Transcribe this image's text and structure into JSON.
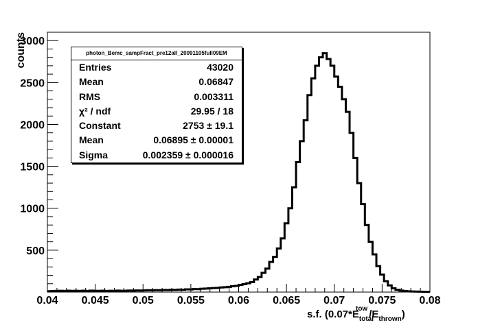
{
  "chart_data": {
    "type": "histogram",
    "title": "",
    "xlabel": "s.f. (0.07*E_total^tow/E_thrown)",
    "ylabel": "counts",
    "xlim": [
      0.04,
      0.08
    ],
    "ylim": [
      0,
      3100
    ],
    "x_ticks": [
      "0.04",
      "0.045",
      "0.05",
      "0.055",
      "0.06",
      "0.065",
      "0.07",
      "0.075",
      "0.08"
    ],
    "y_ticks": [
      "500",
      "1000",
      "1500",
      "2000",
      "2500",
      "3000"
    ],
    "bin_width": 0.0004,
    "x": [
      0.0402,
      0.0406,
      0.041,
      0.0414,
      0.0418,
      0.0422,
      0.0426,
      0.043,
      0.0434,
      0.0438,
      0.0442,
      0.0446,
      0.045,
      0.0454,
      0.0458,
      0.0462,
      0.0466,
      0.047,
      0.0474,
      0.0478,
      0.0482,
      0.0486,
      0.049,
      0.0494,
      0.0498,
      0.0502,
      0.0506,
      0.051,
      0.0514,
      0.0518,
      0.0522,
      0.0526,
      0.053,
      0.0534,
      0.0538,
      0.0542,
      0.0546,
      0.055,
      0.0554,
      0.0558,
      0.0562,
      0.0566,
      0.057,
      0.0574,
      0.0578,
      0.0582,
      0.0586,
      0.059,
      0.0594,
      0.0598,
      0.0602,
      0.0606,
      0.061,
      0.0614,
      0.0618,
      0.0622,
      0.0626,
      0.063,
      0.0634,
      0.0638,
      0.0642,
      0.0646,
      0.065,
      0.0654,
      0.0658,
      0.0662,
      0.0666,
      0.067,
      0.0674,
      0.0678,
      0.0682,
      0.0686,
      0.069,
      0.0694,
      0.0698,
      0.0702,
      0.0706,
      0.071,
      0.0714,
      0.0718,
      0.0722,
      0.0726,
      0.073,
      0.0734,
      0.0738,
      0.0742,
      0.0746,
      0.075,
      0.0754,
      0.0758,
      0.0762,
      0.0766,
      0.077,
      0.0774,
      0.0778,
      0.0782,
      0.0786,
      0.079,
      0.0794,
      0.0798
    ],
    "values": [
      10,
      12,
      14,
      15,
      13,
      16,
      14,
      15,
      13,
      16,
      12,
      17,
      15,
      14,
      16,
      13,
      15,
      14,
      17,
      15,
      16,
      18,
      17,
      19,
      18,
      20,
      22,
      21,
      24,
      23,
      26,
      25,
      28,
      27,
      30,
      29,
      33,
      32,
      36,
      35,
      40,
      42,
      45,
      48,
      50,
      55,
      58,
      62,
      70,
      75,
      85,
      95,
      105,
      120,
      150,
      180,
      230,
      280,
      360,
      420,
      520,
      640,
      820,
      1000,
      1250,
      1550,
      1800,
      2050,
      2350,
      2550,
      2700,
      2800,
      2850,
      2780,
      2700,
      2570,
      2450,
      2300,
      2150,
      1900,
      1600,
      1300,
      1050,
      800,
      600,
      450,
      310,
      210,
      130,
      80,
      45,
      28,
      18,
      12,
      9,
      7,
      6,
      5,
      4,
      3
    ],
    "legend": "",
    "stats": {
      "title": "photon_Bemc_sampFract_pre12all_20091105full09EM",
      "rows": [
        {
          "label": "Entries",
          "value": "43020"
        },
        {
          "label": "Mean",
          "value": "0.06847"
        },
        {
          "label": "RMS",
          "value": "0.003311"
        },
        {
          "label": "χ² / ndf",
          "value": "29.95 / 18"
        },
        {
          "label": "Constant",
          "value": "2753 ± 19.1"
        },
        {
          "label": "Mean",
          "value": "0.06895 ± 0.00001"
        },
        {
          "label": "Sigma",
          "value": "0.002359 ± 0.000016"
        }
      ]
    }
  }
}
